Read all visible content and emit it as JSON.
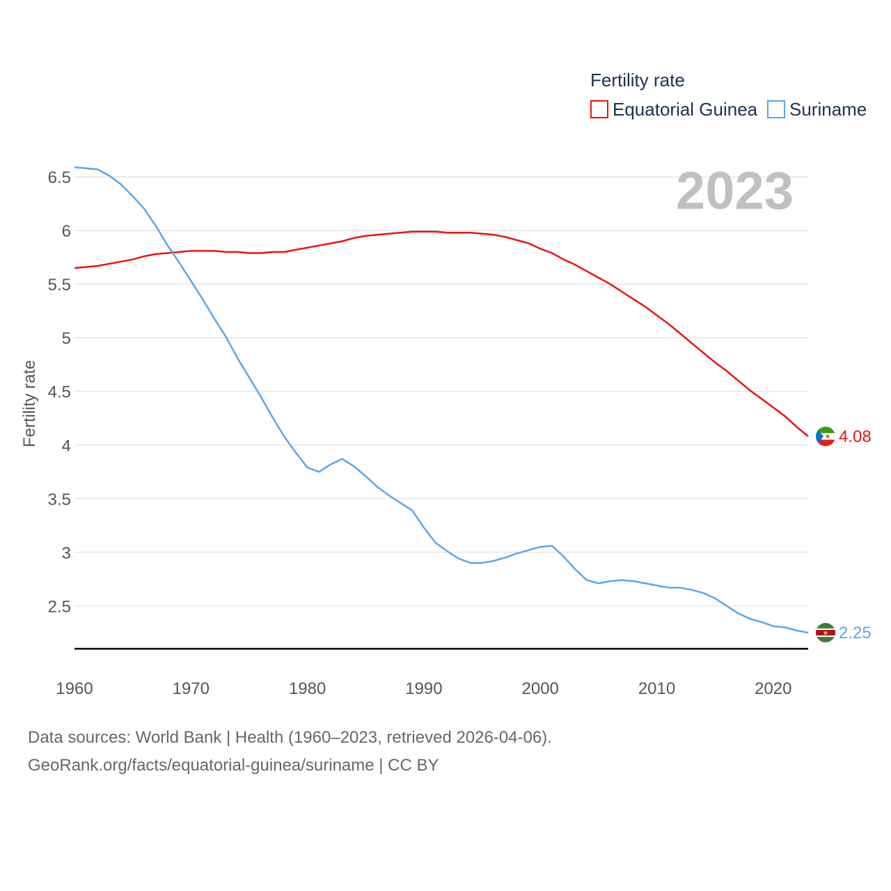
{
  "chart_data": {
    "type": "line",
    "legend_title": "Fertility rate",
    "ylabel": "Fertility rate",
    "xlabel": "",
    "year_label": "2023",
    "xlim": [
      1960,
      2023
    ],
    "ylim": [
      2.1,
      6.65
    ],
    "x_ticks": [
      1960,
      1970,
      1980,
      1990,
      2000,
      2010,
      2020
    ],
    "y_ticks": [
      {
        "value": 2.5,
        "label": "2.5"
      },
      {
        "value": 3,
        "label": "3"
      },
      {
        "value": 3.5,
        "label": "3.5"
      },
      {
        "value": 4,
        "label": "4"
      },
      {
        "value": 4.5,
        "label": "4.5"
      },
      {
        "value": 5,
        "label": "5"
      },
      {
        "value": 5.5,
        "label": "5.5"
      },
      {
        "value": 6,
        "label": "6"
      },
      {
        "value": 6.5,
        "label": "6.5"
      }
    ],
    "baseline": 2.1,
    "series": [
      {
        "name": "Equatorial Guinea",
        "color": "#ee1111",
        "end_label": "4.08",
        "flag": "flag-equatorial-guinea",
        "x": [
          1960,
          1961,
          1962,
          1963,
          1964,
          1965,
          1966,
          1967,
          1968,
          1969,
          1970,
          1971,
          1972,
          1973,
          1974,
          1975,
          1976,
          1977,
          1978,
          1979,
          1980,
          1981,
          1982,
          1983,
          1984,
          1985,
          1986,
          1987,
          1988,
          1989,
          1990,
          1991,
          1992,
          1993,
          1994,
          1995,
          1996,
          1997,
          1998,
          1999,
          2000,
          2001,
          2002,
          2003,
          2004,
          2005,
          2006,
          2007,
          2008,
          2009,
          2010,
          2011,
          2012,
          2013,
          2014,
          2015,
          2016,
          2017,
          2018,
          2019,
          2020,
          2021,
          2022,
          2023
        ],
        "values": [
          5.65,
          5.66,
          5.67,
          5.69,
          5.71,
          5.73,
          5.76,
          5.78,
          5.79,
          5.8,
          5.81,
          5.81,
          5.81,
          5.8,
          5.8,
          5.79,
          5.79,
          5.8,
          5.8,
          5.82,
          5.84,
          5.86,
          5.88,
          5.9,
          5.93,
          5.95,
          5.96,
          5.97,
          5.98,
          5.99,
          5.99,
          5.99,
          5.98,
          5.98,
          5.98,
          5.97,
          5.96,
          5.94,
          5.91,
          5.88,
          5.83,
          5.79,
          5.73,
          5.68,
          5.62,
          5.56,
          5.5,
          5.43,
          5.36,
          5.29,
          5.21,
          5.13,
          5.04,
          4.95,
          4.86,
          4.77,
          4.69,
          4.6,
          4.51,
          4.43,
          4.35,
          4.27,
          4.17,
          4.08
        ]
      },
      {
        "name": "Suriname",
        "color": "#5ba6ea",
        "end_label": "2.25",
        "flag": "flag-suriname",
        "x": [
          1960,
          1961,
          1962,
          1963,
          1964,
          1965,
          1966,
          1967,
          1968,
          1969,
          1970,
          1971,
          1972,
          1973,
          1974,
          1975,
          1976,
          1977,
          1978,
          1979,
          1980,
          1981,
          1982,
          1983,
          1984,
          1985,
          1986,
          1987,
          1988,
          1989,
          1990,
          1991,
          1992,
          1993,
          1994,
          1995,
          1996,
          1997,
          1998,
          1999,
          2000,
          2001,
          2002,
          2003,
          2004,
          2005,
          2006,
          2007,
          2008,
          2009,
          2010,
          2011,
          2012,
          2013,
          2014,
          2015,
          2016,
          2017,
          2018,
          2019,
          2020,
          2021,
          2022,
          2023
        ],
        "values": [
          6.59,
          6.58,
          6.57,
          6.51,
          6.43,
          6.32,
          6.2,
          6.04,
          5.86,
          5.7,
          5.53,
          5.36,
          5.18,
          5.01,
          4.81,
          4.63,
          4.45,
          4.26,
          4.08,
          3.93,
          3.79,
          3.75,
          3.82,
          3.87,
          3.8,
          3.71,
          3.61,
          3.53,
          3.46,
          3.39,
          3.23,
          3.09,
          3.01,
          2.94,
          2.9,
          2.9,
          2.92,
          2.95,
          2.99,
          3.02,
          3.05,
          3.06,
          2.96,
          2.84,
          2.74,
          2.71,
          2.73,
          2.74,
          2.73,
          2.71,
          2.69,
          2.67,
          2.67,
          2.65,
          2.62,
          2.57,
          2.5,
          2.43,
          2.38,
          2.35,
          2.31,
          2.3,
          2.27,
          2.25
        ]
      }
    ]
  },
  "footer": {
    "line1": "Data sources: World Bank | Health (1960–2023, retrieved 2026-04-06).",
    "line2": "GeoRank.org/facts/equatorial-guinea/suriname | CC BY"
  }
}
